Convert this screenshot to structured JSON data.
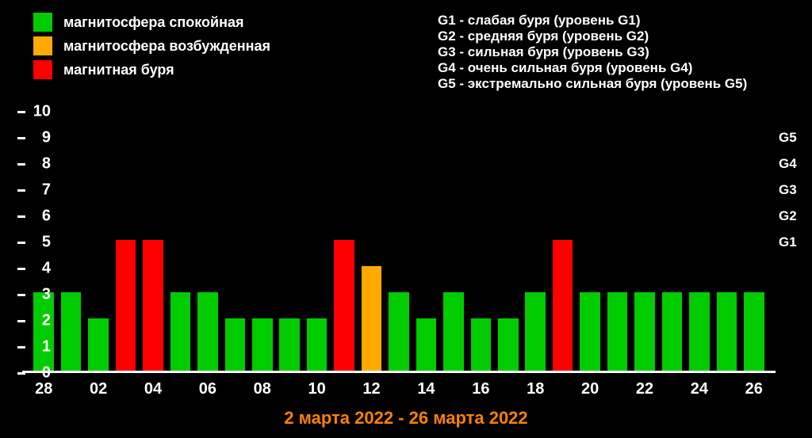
{
  "chart": {
    "type": "bar",
    "background_color": "#000000",
    "text_color": "#ffffff",
    "caption_color": "#ff8000",
    "caption": "2 марта 2022 - 26 марта 2022",
    "yaxis": {
      "min": 0,
      "max": 10,
      "ticks": [
        0,
        1,
        2,
        3,
        4,
        5,
        6,
        7,
        8,
        9,
        10
      ],
      "label_fontsize": 20
    },
    "right_axis": {
      "levels": [
        {
          "label": "G1",
          "value": 5
        },
        {
          "label": "G2",
          "value": 6
        },
        {
          "label": "G3",
          "value": 7
        },
        {
          "label": "G4",
          "value": 8
        },
        {
          "label": "G5",
          "value": 9
        }
      ]
    },
    "xaxis": {
      "tick_labels": [
        "28",
        "02",
        "04",
        "06",
        "08",
        "10",
        "12",
        "14",
        "16",
        "18",
        "20",
        "22",
        "24",
        "26"
      ],
      "tick_days": [
        "28",
        "02",
        "04",
        "06",
        "08",
        "10",
        "12",
        "14",
        "16",
        "18",
        "20",
        "22",
        "24",
        "26"
      ]
    },
    "colors": {
      "calm": "#00cc00",
      "excited": "#ffaa00",
      "storm": "#ff0000"
    },
    "bar_width_ratio": 0.74,
    "bars": [
      {
        "day": "28",
        "value": 3,
        "state": "calm"
      },
      {
        "day": "01",
        "value": 3,
        "state": "calm"
      },
      {
        "day": "02",
        "value": 2,
        "state": "calm"
      },
      {
        "day": "03",
        "value": 5,
        "state": "storm"
      },
      {
        "day": "04",
        "value": 5,
        "state": "storm"
      },
      {
        "day": "05",
        "value": 3,
        "state": "calm"
      },
      {
        "day": "06",
        "value": 3,
        "state": "calm"
      },
      {
        "day": "07",
        "value": 2,
        "state": "calm"
      },
      {
        "day": "08",
        "value": 2,
        "state": "calm"
      },
      {
        "day": "09",
        "value": 2,
        "state": "calm"
      },
      {
        "day": "10",
        "value": 2,
        "state": "calm"
      },
      {
        "day": "11",
        "value": 5,
        "state": "storm"
      },
      {
        "day": "12",
        "value": 4,
        "state": "excited"
      },
      {
        "day": "13",
        "value": 3,
        "state": "calm"
      },
      {
        "day": "14",
        "value": 2,
        "state": "calm"
      },
      {
        "day": "15",
        "value": 3,
        "state": "calm"
      },
      {
        "day": "16",
        "value": 2,
        "state": "calm"
      },
      {
        "day": "17",
        "value": 2,
        "state": "calm"
      },
      {
        "day": "18",
        "value": 3,
        "state": "calm"
      },
      {
        "day": "19",
        "value": 5,
        "state": "storm"
      },
      {
        "day": "20",
        "value": 3,
        "state": "calm"
      },
      {
        "day": "21",
        "value": 3,
        "state": "calm"
      },
      {
        "day": "22",
        "value": 3,
        "state": "calm"
      },
      {
        "day": "23",
        "value": 3,
        "state": "calm"
      },
      {
        "day": "24",
        "value": 3,
        "state": "calm"
      },
      {
        "day": "25",
        "value": 3,
        "state": "calm"
      },
      {
        "day": "26",
        "value": 3,
        "state": "calm"
      }
    ],
    "legend": [
      {
        "color": "#00cc00",
        "label": "магнитосфера спокойная"
      },
      {
        "color": "#ffaa00",
        "label": "магнитосфера возбужденная"
      },
      {
        "color": "#ff0000",
        "label": "магнитная буря"
      }
    ],
    "gscale_text": [
      "G1 - слабая буря (уровень G1)",
      "G2 - средняя буря (уровень G2)",
      "G3 - сильная буря (уровень G3)",
      "G4 - очень сильная буря (уровень G4)",
      "G5 - экстремально сильная буря (уровень G5)"
    ]
  }
}
